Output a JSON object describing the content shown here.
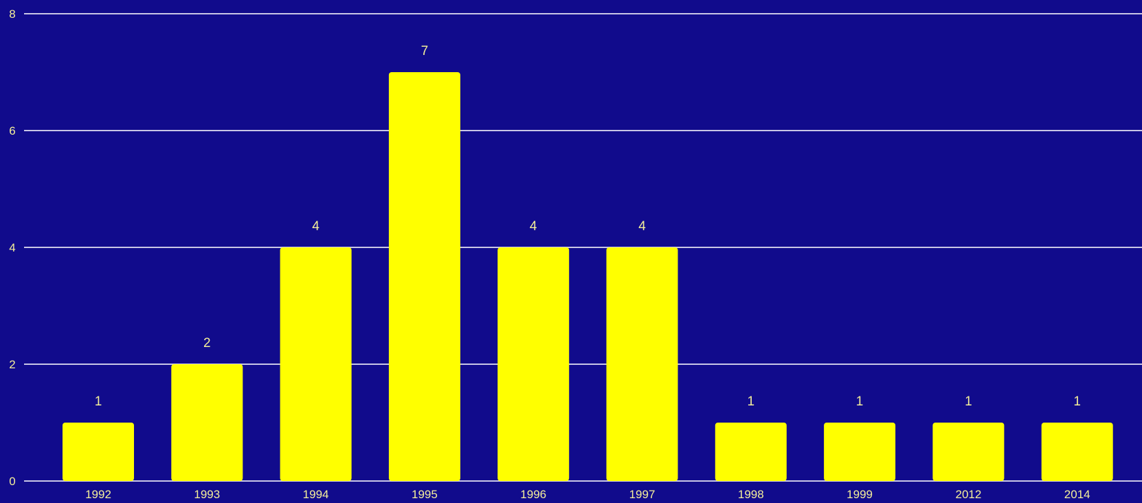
{
  "chart_data": {
    "type": "bar",
    "categories": [
      "1992",
      "1993",
      "1994",
      "1995",
      "1996",
      "1997",
      "1998",
      "1999",
      "2012",
      "2014"
    ],
    "values": [
      1,
      2,
      4,
      7,
      4,
      4,
      1,
      1,
      1,
      1
    ],
    "data_labels": [
      "1",
      "2",
      "4",
      "7",
      "4",
      "4",
      "1",
      "1",
      "1",
      "1"
    ],
    "y_ticks": [
      "0",
      "2",
      "4",
      "6",
      "8"
    ],
    "ylim": [
      0,
      8
    ],
    "grid": true,
    "legend": "none",
    "colors": {
      "background": "#110b8c",
      "bar": "#ffff00",
      "grid": "#c9c7e6",
      "text": "#f4ef9a"
    }
  }
}
